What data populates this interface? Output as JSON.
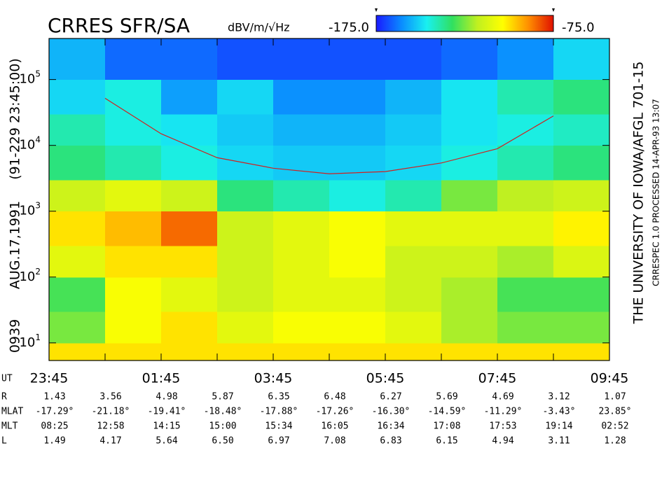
{
  "chart_data": {
    "type": "spectrogram",
    "title": "CRRES SFR/SA",
    "z_unit": "dBV/m/√Hz",
    "zlim": [
      -175,
      -75
    ],
    "zticks": [
      {
        "value": -175,
        "label": "-175.0"
      },
      {
        "value": -75,
        "label": "-75.0"
      }
    ],
    "colormap": [
      "#1a1aff",
      "#0a8cff",
      "#19f0f0",
      "#30e060",
      "#c0f020",
      "#ffff00",
      "#ff9000",
      "#e01000"
    ],
    "side_label": [
      "0939",
      "AUG.17,1991",
      "(91-229 23:45:00)"
    ],
    "right_label": "THE UNIVERSITY OF IOWA/AFGL   701-15",
    "right_note": "CRRESPEC 1.0   PROCESSED 14-APR-93   13:07",
    "x_label": "UT",
    "categories": [
      "23:45",
      null,
      "01:45",
      null,
      "03:45",
      null,
      "05:45",
      null,
      "07:45",
      null,
      "09:45"
    ],
    "log_y": true,
    "ylim": [
      5.4,
      420000
    ],
    "yticks": [
      {
        "value": 10,
        "label": "10",
        "exponent": "1"
      },
      {
        "value": 100,
        "label": "10",
        "exponent": "2"
      },
      {
        "value": 1000,
        "label": "10",
        "exponent": "3"
      },
      {
        "value": 10000,
        "label": "10",
        "exponent": "4"
      },
      {
        "value": 100000,
        "label": "10",
        "exponent": "5"
      }
    ],
    "y_bins": [
      5.4,
      10,
      30,
      100,
      300,
      1000,
      3000,
      10000,
      30000,
      100000,
      420000
    ],
    "z": [
      [
        -100,
        -100,
        -100,
        -100,
        -100,
        -100,
        -100,
        -100,
        -100,
        -100
      ],
      [
        -125,
        -105,
        -100,
        -110,
        -105,
        -105,
        -110,
        -120,
        -125,
        -125
      ],
      [
        -130,
        -105,
        -110,
        -115,
        -110,
        -110,
        -115,
        -120,
        -130,
        -130
      ],
      [
        -110,
        -100,
        -100,
        -115,
        -110,
        -105,
        -115,
        -115,
        -120,
        -112
      ],
      [
        -100,
        -95,
        -85,
        -115,
        -110,
        -105,
        -110,
        -110,
        -110,
        -102
      ],
      [
        -115,
        -110,
        -115,
        -135,
        -140,
        -145,
        -140,
        -125,
        -118,
        -115
      ],
      [
        -135,
        -140,
        -145,
        -150,
        -152,
        -152,
        -150,
        -145,
        -140,
        -135
      ],
      [
        -140,
        -145,
        -148,
        -152,
        -155,
        -155,
        -152,
        -148,
        -145,
        -142
      ],
      [
        -150,
        -145,
        -158,
        -150,
        -160,
        -160,
        -155,
        -148,
        -140,
        -135
      ],
      [
        -155,
        -165,
        -165,
        -168,
        -168,
        -168,
        -168,
        -165,
        -160,
        -150
      ]
    ],
    "overlay": {
      "color": "#d02020",
      "values": [
        null,
        52000,
        15000,
        6500,
        4500,
        3700,
        4000,
        5400,
        8900,
        28000,
        null
      ]
    },
    "ephemeris": [
      {
        "label": "R",
        "values": [
          1.43,
          3.56,
          4.98,
          5.87,
          6.35,
          6.48,
          6.27,
          5.69,
          4.69,
          3.12,
          1.07
        ]
      },
      {
        "label": "MLAT",
        "values": [
          -17.29,
          -21.18,
          -19.41,
          -18.48,
          -17.88,
          -17.26,
          -16.3,
          -14.59,
          -11.29,
          -3.43,
          23.85
        ],
        "value_labels": [
          "-17.29°",
          "-21.18°",
          "-19.41°",
          "-18.48°",
          "-17.88°",
          "-17.26°",
          "-16.30°",
          "-14.59°",
          "-11.29°",
          "-3.43°",
          "23.85°"
        ]
      },
      {
        "label": "MLT",
        "values": [
          "08:25",
          "12:58",
          "14:15",
          "15:00",
          "15:34",
          "16:05",
          "16:34",
          "17:08",
          "17:53",
          "19:14",
          "02:52"
        ]
      },
      {
        "label": "L",
        "values": [
          1.49,
          4.17,
          5.64,
          6.5,
          6.97,
          7.08,
          6.83,
          6.15,
          4.94,
          3.11,
          1.28
        ],
        "value_labels": [
          "1.49",
          "4.17",
          "5.64",
          "6.50",
          "6.97",
          "7.08",
          "6.83",
          "6.15",
          "4.94",
          "3.11",
          "1.28"
        ]
      }
    ]
  }
}
